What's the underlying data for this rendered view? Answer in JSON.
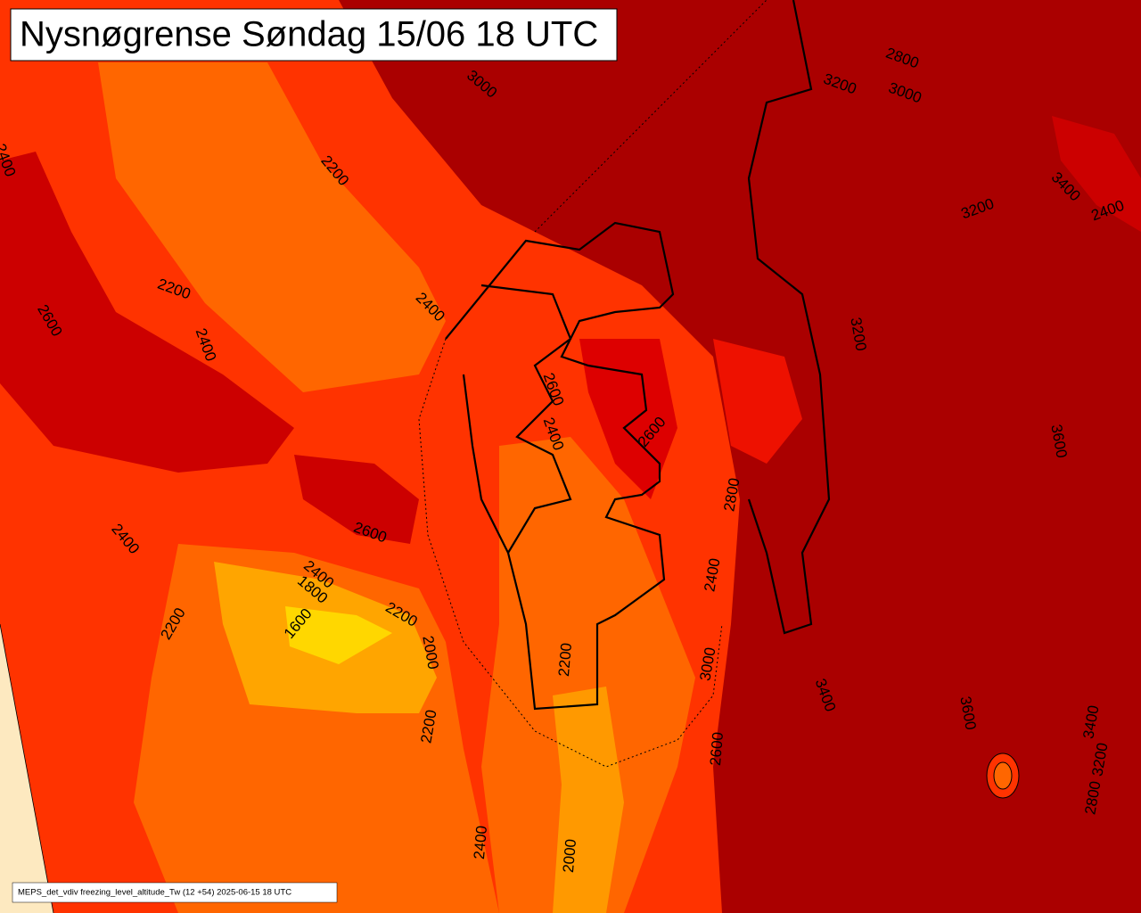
{
  "title": "Nysnøgrense Søndag 15/06 18 UTC",
  "footer": "MEPS_det_vdiv freezing_level_altitude_Tw (12 +54) 2025-06-15 18 UTC",
  "contour_labels": [
    2800,
    3200,
    3000,
    3000,
    2400,
    2200,
    3400,
    2400,
    3200,
    2200,
    2600,
    2400,
    2400,
    3200,
    2600,
    2400,
    2600,
    3600,
    2600,
    2800,
    2400,
    2400,
    1800,
    2400,
    2200,
    1600,
    2200,
    2000,
    3000,
    2200,
    3400,
    3600,
    3400,
    3200,
    2200,
    2600,
    2800,
    2400,
    2000
  ]
}
